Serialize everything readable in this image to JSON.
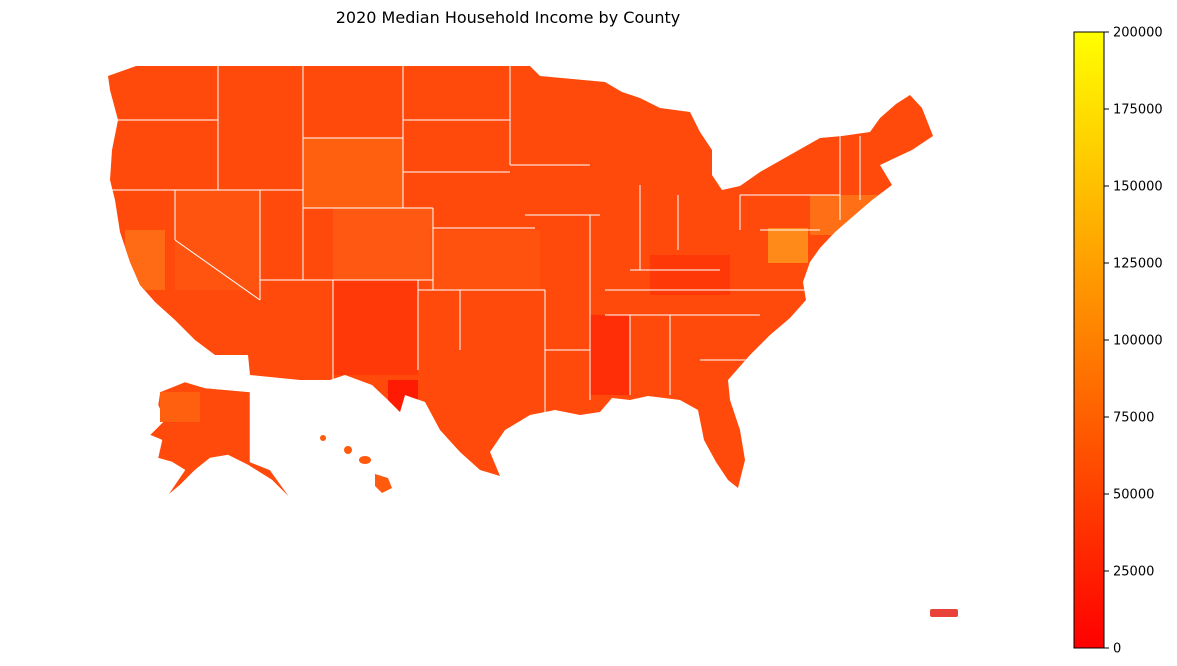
{
  "title": "2020 Median Household Income by County",
  "colorbar": {
    "min": 0,
    "max": 200000,
    "ticks": [
      "0",
      "25000",
      "50000",
      "75000",
      "100000",
      "125000",
      "150000",
      "175000",
      "200000"
    ],
    "colors": {
      "low": "#ff0000",
      "mid": "#ff8000",
      "high": "#ffff00"
    }
  },
  "map_colors": {
    "base": "#ff4a0c",
    "border": "#ffffff",
    "puerto_rico": "#e8423a"
  }
}
